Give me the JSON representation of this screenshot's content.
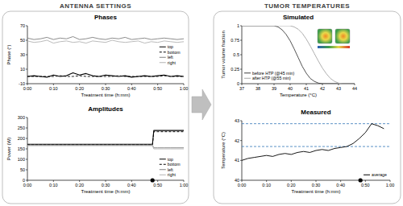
{
  "headers": [
    "ANTENNA SETTINGS",
    "TUMOR TEMPERATURES"
  ],
  "chart_data": [
    {
      "type": "line",
      "title": "Phases",
      "x_label": "Treatment time (h:mm)",
      "y_label": "Phase (°)",
      "x": [
        0,
        2.5,
        5,
        7.5,
        10,
        12.5,
        15,
        17.5,
        20,
        22.5,
        25,
        27.5,
        30,
        32.5,
        35,
        37.5,
        40,
        42.5,
        45,
        47.5,
        50,
        52.5,
        55,
        57.5,
        60
      ],
      "series": [
        {
          "name": "top",
          "color": "#000000",
          "line_style": "solid",
          "values": [
            0,
            1,
            0,
            -1,
            2,
            0,
            1,
            5,
            2,
            4,
            1,
            0,
            2,
            1,
            0,
            1,
            -1,
            0,
            1,
            0,
            1,
            2,
            0,
            1,
            0
          ]
        },
        {
          "name": "bottom",
          "color": "#000000",
          "line_style": "dashed",
          "values": [
            0,
            0,
            0,
            0,
            0,
            1,
            0,
            0,
            1,
            0,
            0,
            0,
            0,
            0,
            1,
            0,
            0,
            0,
            0,
            0,
            0,
            1,
            0,
            0,
            0
          ]
        },
        {
          "name": "left",
          "color": "#808080",
          "line_style": "solid",
          "values": [
            53,
            51,
            52,
            54,
            51,
            53,
            52,
            55,
            51,
            52,
            54,
            52,
            51,
            53,
            52,
            54,
            51,
            52,
            53,
            51,
            52,
            53,
            52,
            51,
            52
          ]
        },
        {
          "name": "right",
          "color": "#b3b3b3",
          "line_style": "solid",
          "values": [
            49,
            47,
            48,
            50,
            46,
            48,
            49,
            47,
            48,
            46,
            49,
            48,
            47,
            50,
            48,
            47,
            48,
            49,
            46,
            48,
            47,
            49,
            48,
            47,
            48
          ]
        }
      ],
      "xlim": [
        0,
        60
      ],
      "xticks": [
        {
          "value": 0,
          "label": "0:00"
        },
        {
          "value": 10,
          "label": "0:10"
        },
        {
          "value": 20,
          "label": "0:20"
        },
        {
          "value": 30,
          "label": "0:30"
        },
        {
          "value": 40,
          "label": "0:40"
        },
        {
          "value": 50,
          "label": "0:50"
        },
        {
          "value": 60,
          "label": "1:00"
        }
      ],
      "ylim": [
        -10,
        70
      ],
      "yticks": [
        -10,
        10,
        30,
        50,
        70
      ],
      "grid": false,
      "legend": "right"
    },
    {
      "type": "line",
      "title": "Amplitudes",
      "x_label": "Treatment time (h:mm)",
      "y_label": "Power (W)",
      "x": [
        0,
        5,
        10,
        15,
        20,
        25,
        30,
        35,
        40,
        45,
        48,
        48.5,
        50,
        52.5,
        55,
        57.5,
        60
      ],
      "series": [
        {
          "name": "top",
          "color": "#000000",
          "line_style": "solid",
          "values": [
            172,
            172,
            172,
            172,
            172,
            172,
            172,
            172,
            172,
            172,
            172,
            238,
            238,
            238,
            238,
            238,
            238
          ]
        },
        {
          "name": "bottom",
          "color": "#000000",
          "line_style": "dashed",
          "values": [
            170,
            170,
            170,
            170,
            170,
            170,
            170,
            170,
            170,
            170,
            170,
            232,
            232,
            232,
            232,
            232,
            232
          ]
        },
        {
          "name": "left",
          "color": "#808080",
          "line_style": "solid",
          "values": [
            168,
            168,
            168,
            168,
            168,
            168,
            168,
            168,
            168,
            168,
            168,
            155,
            155,
            155,
            155,
            155,
            155
          ]
        },
        {
          "name": "right",
          "color": "#b3b3b3",
          "line_style": "solid",
          "values": [
            165,
            165,
            165,
            165,
            165,
            165,
            165,
            165,
            165,
            165,
            165,
            150,
            150,
            150,
            150,
            150,
            150
          ]
        }
      ],
      "event_time": 48,
      "xlim": [
        0,
        60
      ],
      "xticks": [
        {
          "value": 0,
          "label": "0:00"
        },
        {
          "value": 10,
          "label": "0:10"
        },
        {
          "value": 20,
          "label": "0:20"
        },
        {
          "value": 30,
          "label": "0:30"
        },
        {
          "value": 40,
          "label": "0:40"
        },
        {
          "value": 50,
          "label": "0:50"
        },
        {
          "value": 60,
          "label": "1:00"
        }
      ],
      "ylim": [
        0,
        300
      ],
      "yticks": [
        0,
        50,
        100,
        150,
        200,
        250,
        300
      ],
      "grid": false,
      "legend": "bottom right"
    },
    {
      "type": "line",
      "title": "Simulated",
      "x_label": "Temperature (°C)",
      "y_label": "Tumor volume fraction",
      "x": [
        37,
        37.25,
        37.5,
        37.75,
        38,
        38.25,
        38.5,
        38.75,
        39,
        39.25,
        39.5,
        39.75,
        40,
        40.25,
        40.5,
        40.75,
        41,
        41.25,
        41.5,
        41.75,
        42,
        42.25,
        42.5,
        42.75,
        43,
        43.25,
        43.5,
        43.75,
        44
      ],
      "series": [
        {
          "name": "before HTP (@45 min)",
          "color": "#404040",
          "line_style": "solid",
          "values": [
            1,
            1,
            1,
            1,
            1,
            1,
            1,
            1,
            1,
            0.98,
            0.93,
            0.85,
            0.74,
            0.6,
            0.45,
            0.3,
            0.18,
            0.09,
            0.04,
            0.01,
            0,
            0,
            0,
            0,
            0,
            0,
            0,
            0,
            0
          ]
        },
        {
          "name": "after HTP (@55 min)",
          "color": "#a6a6a6",
          "line_style": "solid",
          "values": [
            1,
            1,
            1,
            1,
            1,
            1,
            1,
            1,
            1,
            1,
            1,
            1,
            1,
            0.98,
            0.94,
            0.87,
            0.77,
            0.65,
            0.52,
            0.39,
            0.27,
            0.17,
            0.09,
            0.04,
            0.01,
            0,
            0,
            0,
            0
          ]
        }
      ],
      "xlim": [
        37,
        44
      ],
      "xticks": [
        37,
        38,
        39,
        40,
        41,
        42,
        43,
        44
      ],
      "ylim": [
        0,
        1
      ],
      "yticks": [
        0,
        0.25,
        0.5,
        0.75,
        1
      ],
      "grid": false,
      "legend": "bottom left"
    },
    {
      "type": "line",
      "title": "Measured",
      "x_label": "Treatment time (h:mm)",
      "y_label": "Temperature (°C)",
      "x": [
        0,
        2.5,
        5,
        7.5,
        10,
        12.5,
        15,
        17.5,
        20,
        22.5,
        25,
        27.5,
        30,
        32.5,
        35,
        37.5,
        40,
        42.5,
        45,
        47.5,
        50,
        52.5,
        55,
        57.5
      ],
      "series": [
        {
          "name": "average",
          "color": "#000000",
          "line_style": "solid",
          "values": [
            41,
            41.1,
            41.15,
            41.2,
            41.25,
            41.2,
            41.3,
            41.35,
            41.3,
            41.4,
            41.45,
            41.4,
            41.5,
            41.55,
            41.5,
            41.6,
            41.65,
            41.7,
            41.85,
            42.1,
            42.4,
            42.85,
            42.75,
            42.6
          ]
        }
      ],
      "reference_lines": {
        "values": [
          41.7,
          42.85
        ],
        "color": "#2e75b6",
        "line_style": "dashed"
      },
      "event_time": 48,
      "xlim": [
        0,
        60
      ],
      "xticks": [
        {
          "value": 0,
          "label": "0:00"
        },
        {
          "value": 10,
          "label": "0:10"
        },
        {
          "value": 20,
          "label": "0:20"
        },
        {
          "value": 30,
          "label": "0:30"
        },
        {
          "value": 40,
          "label": "0:40"
        },
        {
          "value": 50,
          "label": "0:50"
        },
        {
          "value": 60,
          "label": "1:00"
        }
      ],
      "ylim": [
        40,
        43
      ],
      "yticks": [
        40,
        41,
        42,
        43
      ],
      "grid": false,
      "legend": "bottom right"
    }
  ]
}
